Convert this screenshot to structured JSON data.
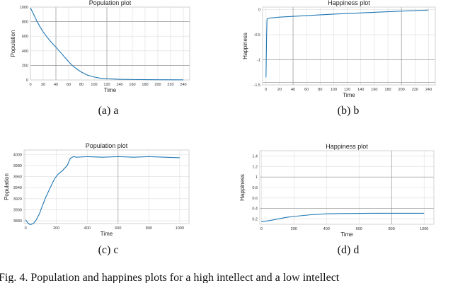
{
  "accent_color": "#1f77b4",
  "caption": "Fig. 4. Population and happines plots for a high intellect and a low intellect",
  "chart_data": [
    {
      "id": "a",
      "type": "line",
      "title": "Population plot",
      "xlabel": "Time",
      "ylabel": "Population",
      "subcaption": "(a) a",
      "xlim": [
        0,
        250
      ],
      "ylim": [
        0,
        1000
      ],
      "xticks": [
        0,
        20,
        40,
        60,
        80,
        100,
        120,
        140,
        160,
        180,
        200,
        220,
        240
      ],
      "xtick_labels": [
        "0",
        "20",
        "40",
        "60",
        "80",
        "100",
        "120",
        "140",
        "160",
        "180",
        "200",
        "220",
        "240"
      ],
      "yticks": [
        0,
        200,
        400,
        600,
        800,
        1000
      ],
      "ytick_labels": [
        "0",
        "200",
        "400",
        "600",
        "800",
        "1000"
      ],
      "ref_x": [
        40,
        120
      ],
      "ref_y": [
        200,
        800
      ],
      "series": [
        {
          "values": [
            [
              0,
              990
            ],
            [
              5,
              900
            ],
            [
              10,
              810
            ],
            [
              15,
              730
            ],
            [
              20,
              660
            ],
            [
              25,
              600
            ],
            [
              30,
              545
            ],
            [
              35,
              495
            ],
            [
              40,
              450
            ],
            [
              45,
              400
            ],
            [
              50,
              350
            ],
            [
              55,
              300
            ],
            [
              60,
              250
            ],
            [
              65,
              205
            ],
            [
              70,
              168
            ],
            [
              75,
              136
            ],
            [
              80,
              108
            ],
            [
              85,
              85
            ],
            [
              90,
              65
            ],
            [
              100,
              40
            ],
            [
              110,
              24
            ],
            [
              120,
              16
            ],
            [
              140,
              9
            ],
            [
              160,
              6
            ],
            [
              200,
              3
            ],
            [
              240,
              2
            ]
          ]
        }
      ]
    },
    {
      "id": "b",
      "type": "line",
      "title": "Happiness plot",
      "xlabel": "Time",
      "ylabel": "Happiness",
      "subcaption": "(b) b",
      "xlim": [
        -5,
        250
      ],
      "ylim": [
        -1.5,
        0.05
      ],
      "xticks": [
        0,
        20,
        40,
        60,
        80,
        100,
        120,
        140,
        160,
        180,
        200,
        220,
        240
      ],
      "xtick_labels": [
        "0",
        "20",
        "40",
        "60",
        "80",
        "100",
        "120",
        "140",
        "160",
        "180",
        "200",
        "220",
        "240"
      ],
      "yticks": [
        -1.5,
        -1,
        -0.5,
        0
      ],
      "ytick_labels": [
        "-1.5",
        "-1",
        "-0.5",
        "0"
      ],
      "ref_x": [
        40,
        200
      ],
      "ref_y": [
        -1,
        -1.45
      ],
      "series": [
        {
          "values": [
            [
              0,
              -1.35
            ],
            [
              0.5,
              -0.9
            ],
            [
              1,
              -0.45
            ],
            [
              1.5,
              -0.2
            ],
            [
              2,
              -0.18
            ],
            [
              5,
              -0.17
            ],
            [
              20,
              -0.15
            ],
            [
              60,
              -0.12
            ],
            [
              100,
              -0.09
            ],
            [
              150,
              -0.06
            ],
            [
              200,
              -0.03
            ],
            [
              240,
              -0.01
            ]
          ]
        }
      ]
    },
    {
      "id": "c",
      "type": "line",
      "title": "Population plot",
      "xlabel": "Time",
      "ylabel": "Population",
      "subcaption": "(c) c",
      "xlim": [
        -10,
        1060
      ],
      "ylim": [
        3875,
        4008
      ],
      "xticks": [
        0,
        200,
        400,
        600,
        800,
        1000
      ],
      "xtick_labels": [
        "0",
        "200",
        "400",
        "600",
        "800",
        "1000"
      ],
      "yticks": [
        3880,
        3900,
        3920,
        3940,
        3960,
        3980,
        4000
      ],
      "ytick_labels": [
        "3880",
        "3900",
        "3920",
        "3940",
        "3960",
        "3980",
        "4000"
      ],
      "ref_x": [
        600
      ],
      "ref_y": [],
      "series": [
        {
          "values": [
            [
              0,
              3882
            ],
            [
              15,
              3876
            ],
            [
              30,
              3873
            ],
            [
              50,
              3875
            ],
            [
              70,
              3882
            ],
            [
              90,
              3893
            ],
            [
              110,
              3908
            ],
            [
              130,
              3922
            ],
            [
              150,
              3934
            ],
            [
              170,
              3946
            ],
            [
              190,
              3957
            ],
            [
              210,
              3964
            ],
            [
              240,
              3971
            ],
            [
              270,
              3980
            ],
            [
              290,
              3993
            ],
            [
              310,
              3996
            ],
            [
              330,
              3995
            ],
            [
              400,
              3996
            ],
            [
              500,
              3995
            ],
            [
              600,
              3996
            ],
            [
              700,
              3995
            ],
            [
              800,
              3996
            ],
            [
              900,
              3995
            ],
            [
              1000,
              3994
            ]
          ]
        }
      ]
    },
    {
      "id": "d",
      "type": "line",
      "title": "Happiness plot",
      "xlabel": "Time",
      "ylabel": "Happiness",
      "subcaption": "(d) d",
      "xlim": [
        -10,
        1060
      ],
      "ylim": [
        0.1,
        1.5
      ],
      "xticks": [
        0,
        200,
        400,
        600,
        800,
        1000
      ],
      "xtick_labels": [
        "0",
        "200",
        "400",
        "600",
        "800",
        "1000"
      ],
      "yticks": [
        0.2,
        0.4,
        0.6,
        0.8,
        1.0,
        1.2,
        1.4
      ],
      "ytick_labels": [
        "0.2",
        "0.4",
        "0.6",
        "0.8",
        "1",
        "1.2",
        "1.4"
      ],
      "ref_x": [
        800
      ],
      "ref_y": [
        0.4,
        1.0
      ],
      "series": [
        {
          "values": [
            [
              0,
              0.15
            ],
            [
              50,
              0.17
            ],
            [
              100,
              0.2
            ],
            [
              150,
              0.23
            ],
            [
              200,
              0.25
            ],
            [
              300,
              0.28
            ],
            [
              400,
              0.3
            ],
            [
              500,
              0.305
            ],
            [
              700,
              0.31
            ],
            [
              1000,
              0.31
            ]
          ]
        }
      ]
    }
  ]
}
